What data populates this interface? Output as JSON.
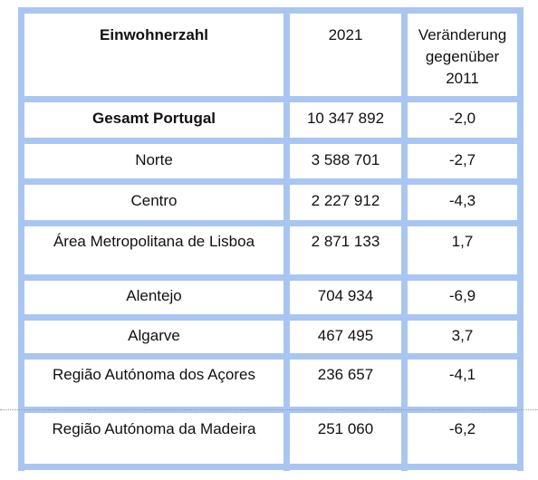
{
  "table": {
    "header": {
      "col1": "Einwohnerzahl",
      "col2": "2021",
      "col3_line1": "Veränderung",
      "col3_line2": "gegenüber",
      "col3_line3": "2011"
    },
    "rows": [
      {
        "region": "Gesamt Portugal",
        "population": "10 347 892",
        "change": "-2,0"
      },
      {
        "region": "Norte",
        "population": "3 588 701",
        "change": "-2,7"
      },
      {
        "region": "Centro",
        "population": "2 227 912",
        "change": "-4,3"
      },
      {
        "region": "Área Metropolitana de Lisboa",
        "population": "2 871 133",
        "change": "1,7"
      },
      {
        "region": "Alentejo",
        "population": "704 934",
        "change": "-6,9"
      },
      {
        "region": "Algarve",
        "population": "467 495",
        "change": "3,7"
      },
      {
        "region": "Região Autónoma dos Açores",
        "population": "236 657",
        "change": "-4,1"
      },
      {
        "region": "Região Autónoma da Madeira",
        "population": "251 060",
        "change": "-6,2"
      }
    ]
  }
}
